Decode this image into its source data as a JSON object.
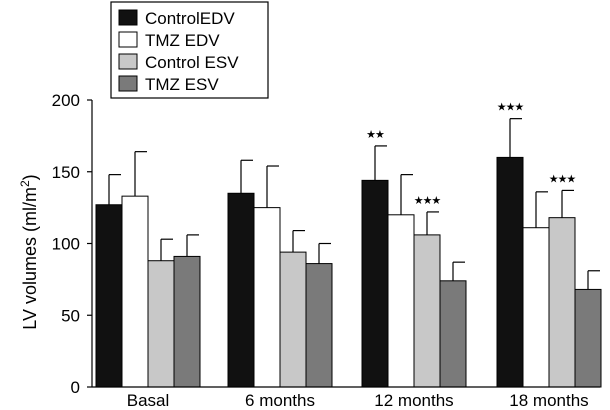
{
  "chart_data": {
    "type": "bar",
    "categories": [
      "Basal",
      "6 months",
      "12 months",
      "18 months"
    ],
    "series": [
      {
        "name": "ControlEDV",
        "color": "#111111",
        "values": [
          127,
          135,
          144,
          160
        ],
        "errors": [
          21,
          23,
          24,
          27
        ]
      },
      {
        "name": "TMZ EDV",
        "color": "#ffffff",
        "values": [
          133,
          125,
          120,
          111
        ],
        "errors": [
          31,
          29,
          28,
          25
        ]
      },
      {
        "name": "Control ESV",
        "color": "#c8c8c8",
        "values": [
          88,
          94,
          106,
          118
        ],
        "errors": [
          15,
          15,
          16,
          19
        ]
      },
      {
        "name": "TMZ ESV",
        "color": "#7a7a7a",
        "values": [
          91,
          86,
          74,
          68
        ],
        "errors": [
          15,
          14,
          13,
          13
        ]
      }
    ],
    "significance": [
      {
        "category": 2,
        "series": 0,
        "label": "★★"
      },
      {
        "category": 2,
        "series": 2,
        "label": "★★★"
      },
      {
        "category": 3,
        "series": 0,
        "label": "★★★"
      },
      {
        "category": 3,
        "series": 2,
        "label": "★★★"
      }
    ],
    "ylabel": "LV volumes (ml/m",
    "ylabel_superscript": "2",
    "ylabel_suffix": ")",
    "ylim": [
      0,
      200
    ],
    "yticks": [
      0,
      50,
      100,
      150,
      200
    ],
    "grid": false,
    "legend_position": "top-left"
  }
}
